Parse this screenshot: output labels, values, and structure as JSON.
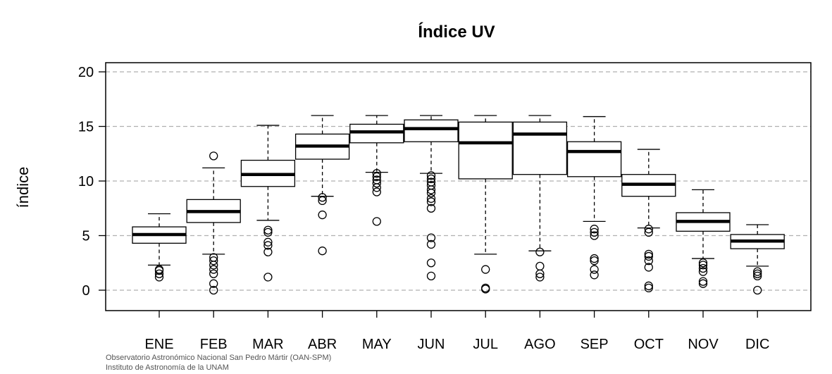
{
  "chart_data": {
    "type": "box",
    "title": "Índice UV",
    "ylabel": "índice",
    "xlabel": "",
    "ylim": [
      -1.8,
      21
    ],
    "yticks": [
      0,
      5,
      10,
      15,
      20
    ],
    "grid": "horizontal-dashed",
    "categories": [
      "ENE",
      "FEB",
      "MAR",
      "ABR",
      "MAY",
      "JUN",
      "JUL",
      "AGO",
      "SEP",
      "OCT",
      "NOV",
      "DIC"
    ],
    "boxes": [
      {
        "min": 2.3,
        "q1": 4.3,
        "median": 5.1,
        "q3": 5.8,
        "max": 7.0,
        "outliers": [
          1.2,
          1.5,
          1.8,
          1.9
        ]
      },
      {
        "min": 3.3,
        "q1": 6.2,
        "median": 7.2,
        "q3": 8.3,
        "max": 11.2,
        "outliers": [
          12.3,
          3.0,
          2.7,
          2.3,
          1.9,
          1.5,
          0.6,
          0.0
        ]
      },
      {
        "min": 6.4,
        "q1": 9.5,
        "median": 10.6,
        "q3": 11.9,
        "max": 15.1,
        "outliers": [
          5.5,
          5.3,
          4.4,
          4.1,
          3.5,
          1.2
        ]
      },
      {
        "min": 8.6,
        "q1": 12.0,
        "median": 13.2,
        "q3": 14.3,
        "max": 16.0,
        "outliers": [
          8.5,
          8.2,
          6.9,
          3.6
        ]
      },
      {
        "min": 10.8,
        "q1": 13.5,
        "median": 14.5,
        "q3": 15.2,
        "max": 16.0,
        "outliers": [
          10.7,
          10.4,
          10.1,
          9.8,
          9.4,
          9.0,
          6.3
        ]
      },
      {
        "min": 10.7,
        "q1": 13.6,
        "median": 14.8,
        "q3": 15.6,
        "max": 16.0,
        "outliers": [
          10.5,
          10.2,
          9.9,
          9.6,
          9.2,
          8.9,
          8.4,
          8.1,
          7.5,
          4.8,
          4.2,
          2.5,
          1.3
        ]
      },
      {
        "min": 3.3,
        "q1": 10.2,
        "median": 13.5,
        "q3": 15.4,
        "max": 16.0,
        "outliers": [
          1.9,
          0.2,
          0.1
        ]
      },
      {
        "min": 3.6,
        "q1": 10.6,
        "median": 14.3,
        "q3": 15.4,
        "max": 16.0,
        "outliers": [
          3.5,
          2.2,
          1.5,
          1.2
        ]
      },
      {
        "min": 6.3,
        "q1": 10.4,
        "median": 12.7,
        "q3": 13.6,
        "max": 15.9,
        "outliers": [
          5.6,
          5.3,
          5.0,
          2.9,
          2.7,
          1.9,
          1.4
        ]
      },
      {
        "min": 5.7,
        "q1": 8.6,
        "median": 9.7,
        "q3": 10.6,
        "max": 12.9,
        "outliers": [
          5.6,
          5.3,
          3.3,
          3.1,
          2.7,
          2.1,
          0.4,
          0.2
        ]
      },
      {
        "min": 2.9,
        "q1": 5.4,
        "median": 6.3,
        "q3": 7.1,
        "max": 9.2,
        "outliers": [
          2.5,
          2.3,
          2.0,
          1.7,
          0.8,
          0.6
        ]
      },
      {
        "min": 2.2,
        "q1": 3.8,
        "median": 4.5,
        "q3": 5.1,
        "max": 6.0,
        "outliers": [
          1.7,
          1.5,
          1.3,
          0.0
        ]
      }
    ]
  },
  "credits": {
    "line1": "Observatorio Astronómico Nacional San Pedro Mártir (OAN-SPM)",
    "line2": "Instituto de Astronomía de la UNAM"
  }
}
